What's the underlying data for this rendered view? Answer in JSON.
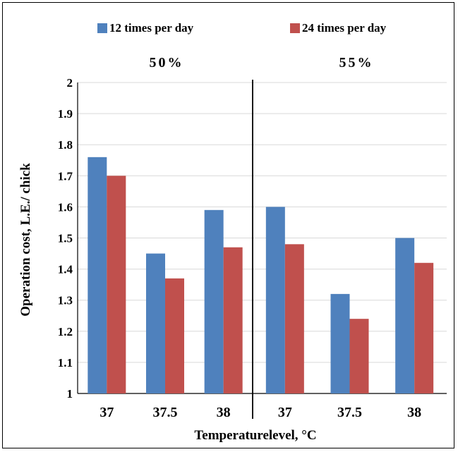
{
  "chart_data": {
    "type": "bar",
    "xlabel": "Temperaturelevel, °C",
    "ylabel": "Operation cost, L.E./ chick",
    "ylim": [
      1,
      2
    ],
    "yticks": [
      "1",
      "1.1",
      "1.2",
      "1.3",
      "1.4",
      "1.5",
      "1.6",
      "1.7",
      "1.8",
      "1.9",
      "2"
    ],
    "grid": true,
    "legend_position": "top",
    "series_names": [
      "12 times per day",
      "24 times per day"
    ],
    "colors": [
      "#4F81BD",
      "#C0504D"
    ],
    "panels": [
      {
        "title": "50%",
        "categories": [
          "37",
          "37.5",
          "38"
        ],
        "series": [
          {
            "name": "12 times per day",
            "values": [
              1.76,
              1.45,
              1.59
            ]
          },
          {
            "name": "24 times per day",
            "values": [
              1.7,
              1.37,
              1.47
            ]
          }
        ]
      },
      {
        "title": "55%",
        "categories": [
          "37",
          "37.5",
          "38"
        ],
        "series": [
          {
            "name": "12 times per day",
            "values": [
              1.6,
              1.32,
              1.5
            ]
          },
          {
            "name": "24 times per day",
            "values": [
              1.48,
              1.24,
              1.42
            ]
          }
        ]
      }
    ]
  }
}
